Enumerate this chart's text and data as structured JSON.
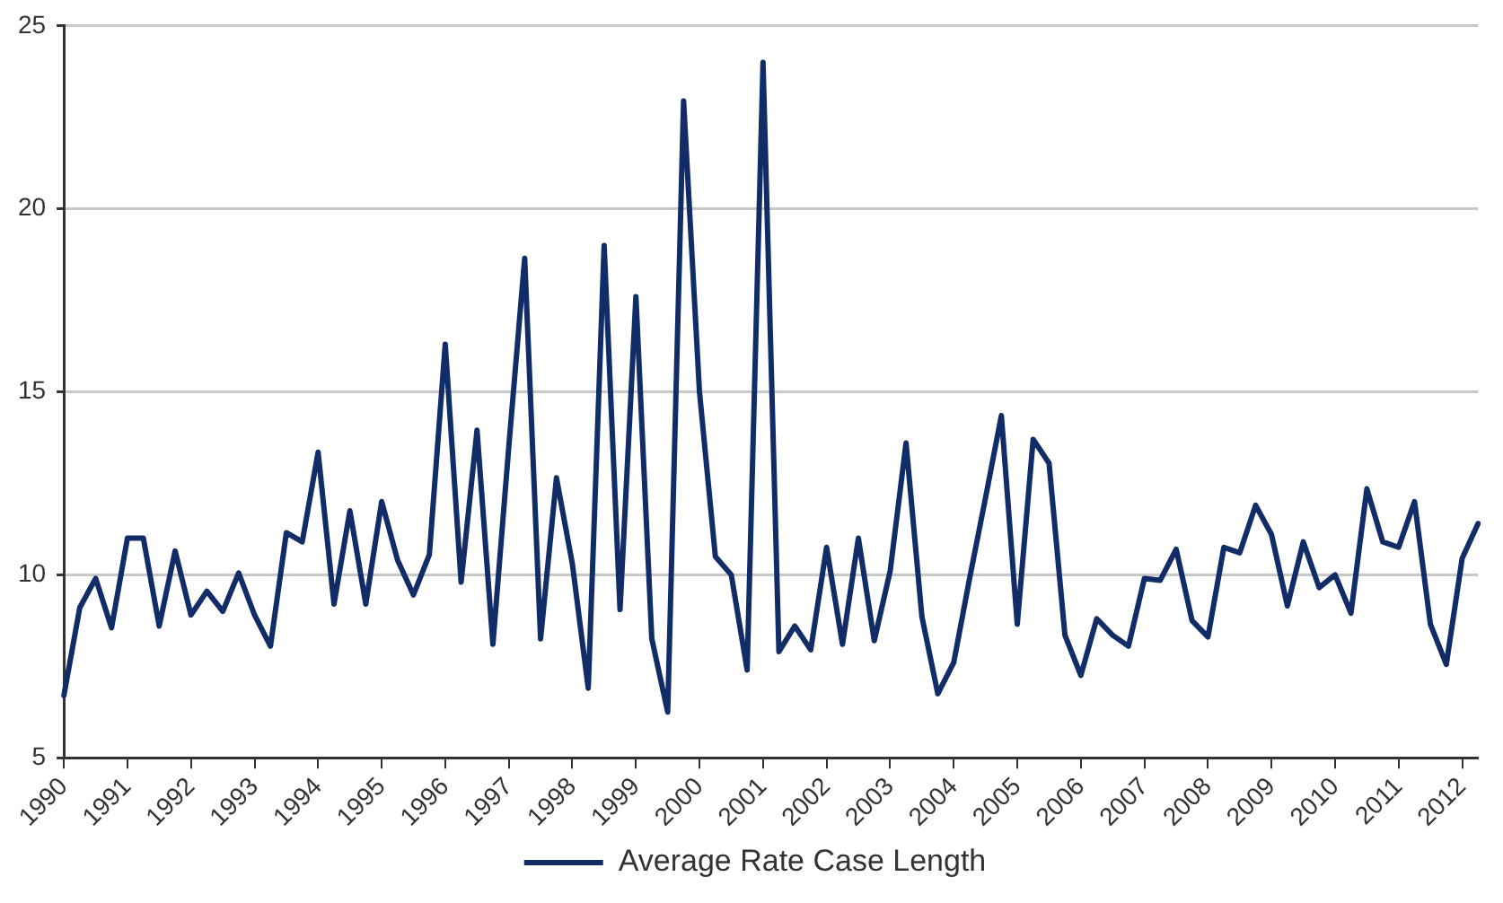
{
  "chart_data": {
    "type": "line",
    "categories": [
      "1990",
      null,
      null,
      null,
      "1991",
      null,
      null,
      null,
      "1992",
      null,
      null,
      null,
      "1993",
      null,
      null,
      null,
      "1994",
      null,
      null,
      null,
      "1995",
      null,
      null,
      null,
      "1996",
      null,
      null,
      null,
      "1997",
      null,
      null,
      null,
      "1998",
      null,
      null,
      null,
      "1999",
      null,
      null,
      null,
      "2000",
      null,
      null,
      null,
      "2001",
      null,
      null,
      null,
      "2002",
      null,
      null,
      null,
      "2003",
      null,
      null,
      null,
      "2004",
      null,
      null,
      null,
      "2005",
      null,
      null,
      null,
      "2006",
      null,
      null,
      null,
      "2007",
      null,
      null,
      null,
      "2008",
      null,
      null,
      null,
      "2009",
      null,
      null,
      null,
      "2010",
      null,
      null,
      null,
      "2011",
      null,
      null,
      null,
      "2012",
      null
    ],
    "series": [
      {
        "name": "Average Rate Case Length",
        "color": "#112c66",
        "values": [
          6.7,
          9.1,
          9.9,
          8.55,
          11.0,
          11.0,
          8.6,
          10.65,
          8.9,
          9.55,
          9.0,
          10.05,
          8.9,
          8.05,
          11.15,
          10.9,
          13.35,
          9.2,
          11.75,
          9.2,
          12.0,
          10.4,
          9.45,
          10.55,
          16.3,
          9.8,
          13.95,
          8.1,
          13.5,
          18.65,
          8.25,
          12.65,
          10.3,
          6.9,
          19.0,
          9.05,
          17.6,
          8.25,
          6.25,
          22.95,
          15.0,
          10.5,
          10.0,
          7.4,
          24.0,
          7.9,
          8.6,
          7.95,
          10.75,
          8.1,
          11.0,
          8.2,
          10.1,
          13.6,
          8.85,
          6.75,
          7.6,
          9.9,
          12.1,
          14.35,
          8.65,
          13.7,
          13.05,
          8.35,
          7.25,
          8.8,
          8.35,
          8.05,
          9.9,
          9.85,
          10.7,
          8.75,
          8.3,
          10.75,
          10.6,
          11.9,
          11.1,
          9.15,
          10.9,
          9.65,
          10.0,
          8.95,
          12.35,
          10.9,
          10.75,
          12.0,
          8.65,
          7.55,
          10.45,
          11.4
        ]
      }
    ],
    "ylim": [
      5,
      25
    ],
    "yticks": [
      5,
      10,
      15,
      20,
      25
    ],
    "grid": "y",
    "legend": "bottom",
    "marker": "none",
    "line_style": "solid"
  }
}
